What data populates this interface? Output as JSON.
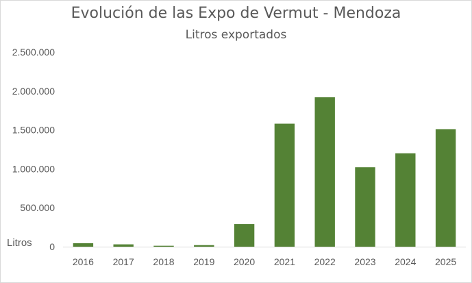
{
  "chart_data": {
    "type": "bar",
    "title": "Evolución de las Expo de Vermut - Mendoza",
    "subtitle": "Litros exportados",
    "ylabel": "Litros",
    "xlabel": "",
    "categories": [
      "2016",
      "2017",
      "2018",
      "2019",
      "2020",
      "2021",
      "2022",
      "2023",
      "2024",
      "2025"
    ],
    "values": [
      45000,
      30000,
      12000,
      20000,
      290000,
      1580000,
      1920000,
      1020000,
      1200000,
      1510000
    ],
    "ylim": [
      0,
      2500000
    ],
    "yticks": [
      0,
      500000,
      1000000,
      1500000,
      2000000,
      2500000
    ],
    "ytick_labels": [
      "0",
      "500.000",
      "1.000.000",
      "1.500.000",
      "2.000.000",
      "2.500.000"
    ],
    "bar_color": "#548235",
    "grid": false,
    "legend": "none"
  }
}
